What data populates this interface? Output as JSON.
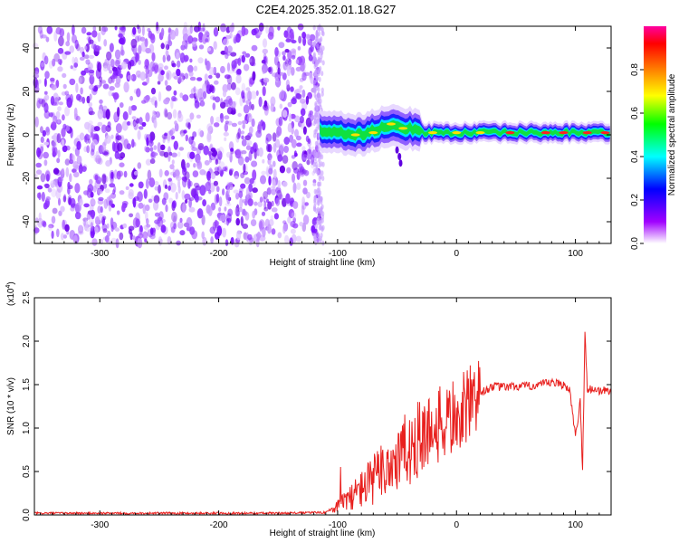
{
  "title": "C2E4.2025.352.01.18.G27",
  "chart_data": [
    {
      "type": "heatmap",
      "xlabel": "Height of straight line (km)",
      "ylabel": "Frequency (Hz)",
      "xlim": [
        -355,
        130
      ],
      "ylim": [
        -50,
        50
      ],
      "x_ticks": [
        "-300",
        "-200",
        "-100",
        "0",
        "100"
      ],
      "x_tick_values": [
        -300,
        -200,
        -100,
        0,
        100
      ],
      "y_ticks": [
        "40",
        "20",
        "0",
        "-20",
        "-40"
      ],
      "y_tick_values": [
        40,
        20,
        0,
        -20,
        -40
      ],
      "colorbar": {
        "label": "Normalized spectral amplitude",
        "range": [
          0,
          1
        ],
        "ticks": [
          "0.0",
          "0.2",
          "0.4",
          "0.6",
          "0.8"
        ],
        "tick_values": [
          0.0,
          0.2,
          0.4,
          0.6,
          0.8
        ],
        "colormap": [
          "#ffffff",
          "#a000ff",
          "#0000ff",
          "#00ffff",
          "#00ff00",
          "#ffff00",
          "#ff8000",
          "#ff0000",
          "#ff00a0"
        ]
      },
      "noise_region": {
        "x": [
          -355,
          -115
        ],
        "amplitude": "low (0.05-0.15)"
      },
      "signal_ridge": [
        {
          "x": -115,
          "y": 2
        },
        {
          "x": -100,
          "y": 1
        },
        {
          "x": -80,
          "y": 0
        },
        {
          "x": -60,
          "y": 4
        },
        {
          "x": -40,
          "y": 3
        },
        {
          "x": -25,
          "y": 1
        },
        {
          "x": 0,
          "y": 1
        },
        {
          "x": 50,
          "y": 1
        },
        {
          "x": 100,
          "y": 1
        },
        {
          "x": 130,
          "y": 1
        }
      ],
      "grid": false
    },
    {
      "type": "line",
      "xlabel": "Height of straight line (km)",
      "ylabel": "SNR (10 * v/v)",
      "y_multiplier_label": "(x10",
      "y_multiplier_exp": "4",
      "xlim": [
        -355,
        130
      ],
      "ylim": [
        0,
        2.5
      ],
      "x_ticks": [
        "-300",
        "-200",
        "-100",
        "0",
        "100"
      ],
      "x_tick_values": [
        -300,
        -200,
        -100,
        0,
        100
      ],
      "y_ticks": [
        "0.0",
        "0.5",
        "1.0",
        "1.5",
        "2.0",
        "2.5"
      ],
      "y_tick_values": [
        0.0,
        0.5,
        1.0,
        1.5,
        2.0,
        2.5
      ],
      "series": [
        {
          "color": "#e8201e",
          "x": [
            -355,
            -300,
            -250,
            -200,
            -150,
            -110,
            -100,
            -90,
            -80,
            -70,
            -60,
            -50,
            -40,
            -30,
            -20,
            -10,
            0,
            10,
            20,
            30,
            40,
            50,
            60,
            70,
            80,
            90,
            95,
            100,
            104,
            106,
            108,
            110,
            115,
            120,
            130
          ],
          "y": [
            0.02,
            0.02,
            0.02,
            0.02,
            0.02,
            0.03,
            0.1,
            0.2,
            0.3,
            0.4,
            0.55,
            0.65,
            0.75,
            0.9,
            1.0,
            1.05,
            1.15,
            1.25,
            1.4,
            1.48,
            1.47,
            1.48,
            1.48,
            1.5,
            1.52,
            1.5,
            1.45,
            0.9,
            1.3,
            0.5,
            2.1,
            1.45,
            1.45,
            1.43,
            1.43
          ]
        }
      ],
      "grid": false
    }
  ]
}
